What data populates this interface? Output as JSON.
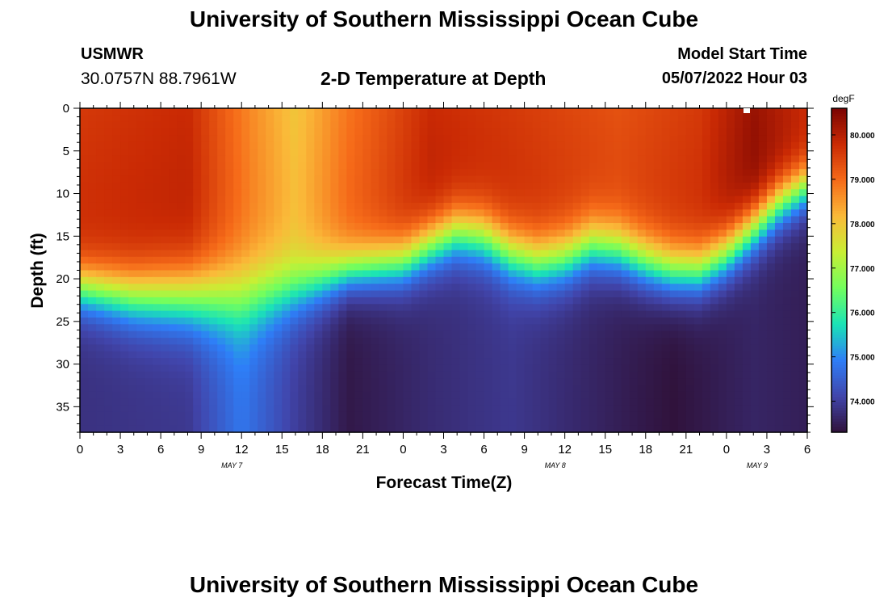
{
  "header": {
    "title": "University of Southern Mississippi Ocean Cube",
    "station": "USMWR",
    "coordinates": "30.0757N  88.7961W",
    "subtitle": "2-D Temperature at Depth",
    "model_start_label": "Model Start Time",
    "model_start_value": "05/07/2022 Hour 03"
  },
  "footer": {
    "title": "University of Southern Mississippi Ocean Cube"
  },
  "chart_data": {
    "type": "heatmap",
    "title": "2-D Temperature at Depth",
    "xlabel": "Forecast Time(Z)",
    "ylabel": "Depth (ft)",
    "x_range_hours": [
      0,
      54
    ],
    "x_ticks": [
      "0",
      "3",
      "6",
      "9",
      "12",
      "15",
      "18",
      "21",
      "0",
      "3",
      "6",
      "9",
      "12",
      "15",
      "18",
      "21",
      "0",
      "3",
      "6"
    ],
    "date_labels": [
      {
        "label": "MAY 7",
        "hour": 12
      },
      {
        "label": "MAY 8",
        "hour": 36
      },
      {
        "label": "MAY 9",
        "hour": 51
      }
    ],
    "y_range_ft": [
      0,
      38
    ],
    "y_ticks": [
      "0",
      "5",
      "10",
      "15",
      "20",
      "25",
      "30",
      "35"
    ],
    "colorbar": {
      "unit": "degF",
      "range": [
        73.3,
        80.6
      ],
      "ticks": [
        "80.000",
        "79.000",
        "78.000",
        "77.000",
        "76.000",
        "75.000",
        "74.000"
      ],
      "colors": [
        "#30123b",
        "#4145ab",
        "#2e7ef7",
        "#1ae4b6",
        "#72fe5e",
        "#c8ef34",
        "#faba39",
        "#f66b19",
        "#ca2a04",
        "#7a0403"
      ]
    },
    "warm_layer_bottom_ft": [
      {
        "hour": 0,
        "depth": 21
      },
      {
        "hour": 4,
        "depth": 22
      },
      {
        "hour": 8,
        "depth": 22
      },
      {
        "hour": 12,
        "depth": 22
      },
      {
        "hour": 16,
        "depth": 21
      },
      {
        "hour": 20,
        "depth": 19
      },
      {
        "hour": 24,
        "depth": 18
      },
      {
        "hour": 26,
        "depth": 16
      },
      {
        "hour": 28,
        "depth": 14.5
      },
      {
        "hour": 30,
        "depth": 15
      },
      {
        "hour": 32,
        "depth": 17
      },
      {
        "hour": 34,
        "depth": 18
      },
      {
        "hour": 36,
        "depth": 17.5
      },
      {
        "hour": 38,
        "depth": 16
      },
      {
        "hour": 40,
        "depth": 16.5
      },
      {
        "hour": 42,
        "depth": 18
      },
      {
        "hour": 44,
        "depth": 19
      },
      {
        "hour": 46,
        "depth": 19
      },
      {
        "hour": 48,
        "depth": 17
      },
      {
        "hour": 50,
        "depth": 14
      },
      {
        "hour": 52,
        "depth": 11
      },
      {
        "hour": 54,
        "depth": 9
      }
    ],
    "thermocline_thickness_ft": [
      {
        "hour": 0,
        "thickness": 7
      },
      {
        "hour": 12,
        "thickness": 11
      },
      {
        "hour": 20,
        "thickness": 7
      },
      {
        "hour": 30,
        "thickness": 8
      },
      {
        "hour": 42,
        "thickness": 8
      },
      {
        "hour": 54,
        "thickness": 7
      }
    ],
    "surface_temp_degF": [
      {
        "hour": 0,
        "temp": 79.6
      },
      {
        "hour": 8,
        "temp": 79.8
      },
      {
        "hour": 13,
        "temp": 78.6
      },
      {
        "hour": 16,
        "temp": 78.0
      },
      {
        "hour": 20,
        "temp": 78.9
      },
      {
        "hour": 26,
        "temp": 79.8
      },
      {
        "hour": 32,
        "temp": 79.6
      },
      {
        "hour": 40,
        "temp": 79.3
      },
      {
        "hour": 46,
        "temp": 79.6
      },
      {
        "hour": 50,
        "temp": 80.3
      },
      {
        "hour": 54,
        "temp": 79.8
      }
    ],
    "bottom_temp_degF": [
      {
        "hour": 0,
        "temp": 73.8
      },
      {
        "hour": 8,
        "temp": 73.9
      },
      {
        "hour": 12,
        "temp": 74.8
      },
      {
        "hour": 16,
        "temp": 74.0
      },
      {
        "hour": 20,
        "temp": 73.4
      },
      {
        "hour": 26,
        "temp": 73.7
      },
      {
        "hour": 32,
        "temp": 73.9
      },
      {
        "hour": 38,
        "temp": 73.6
      },
      {
        "hour": 44,
        "temp": 73.3
      },
      {
        "hour": 50,
        "temp": 73.6
      },
      {
        "hour": 54,
        "temp": 73.5
      }
    ]
  }
}
